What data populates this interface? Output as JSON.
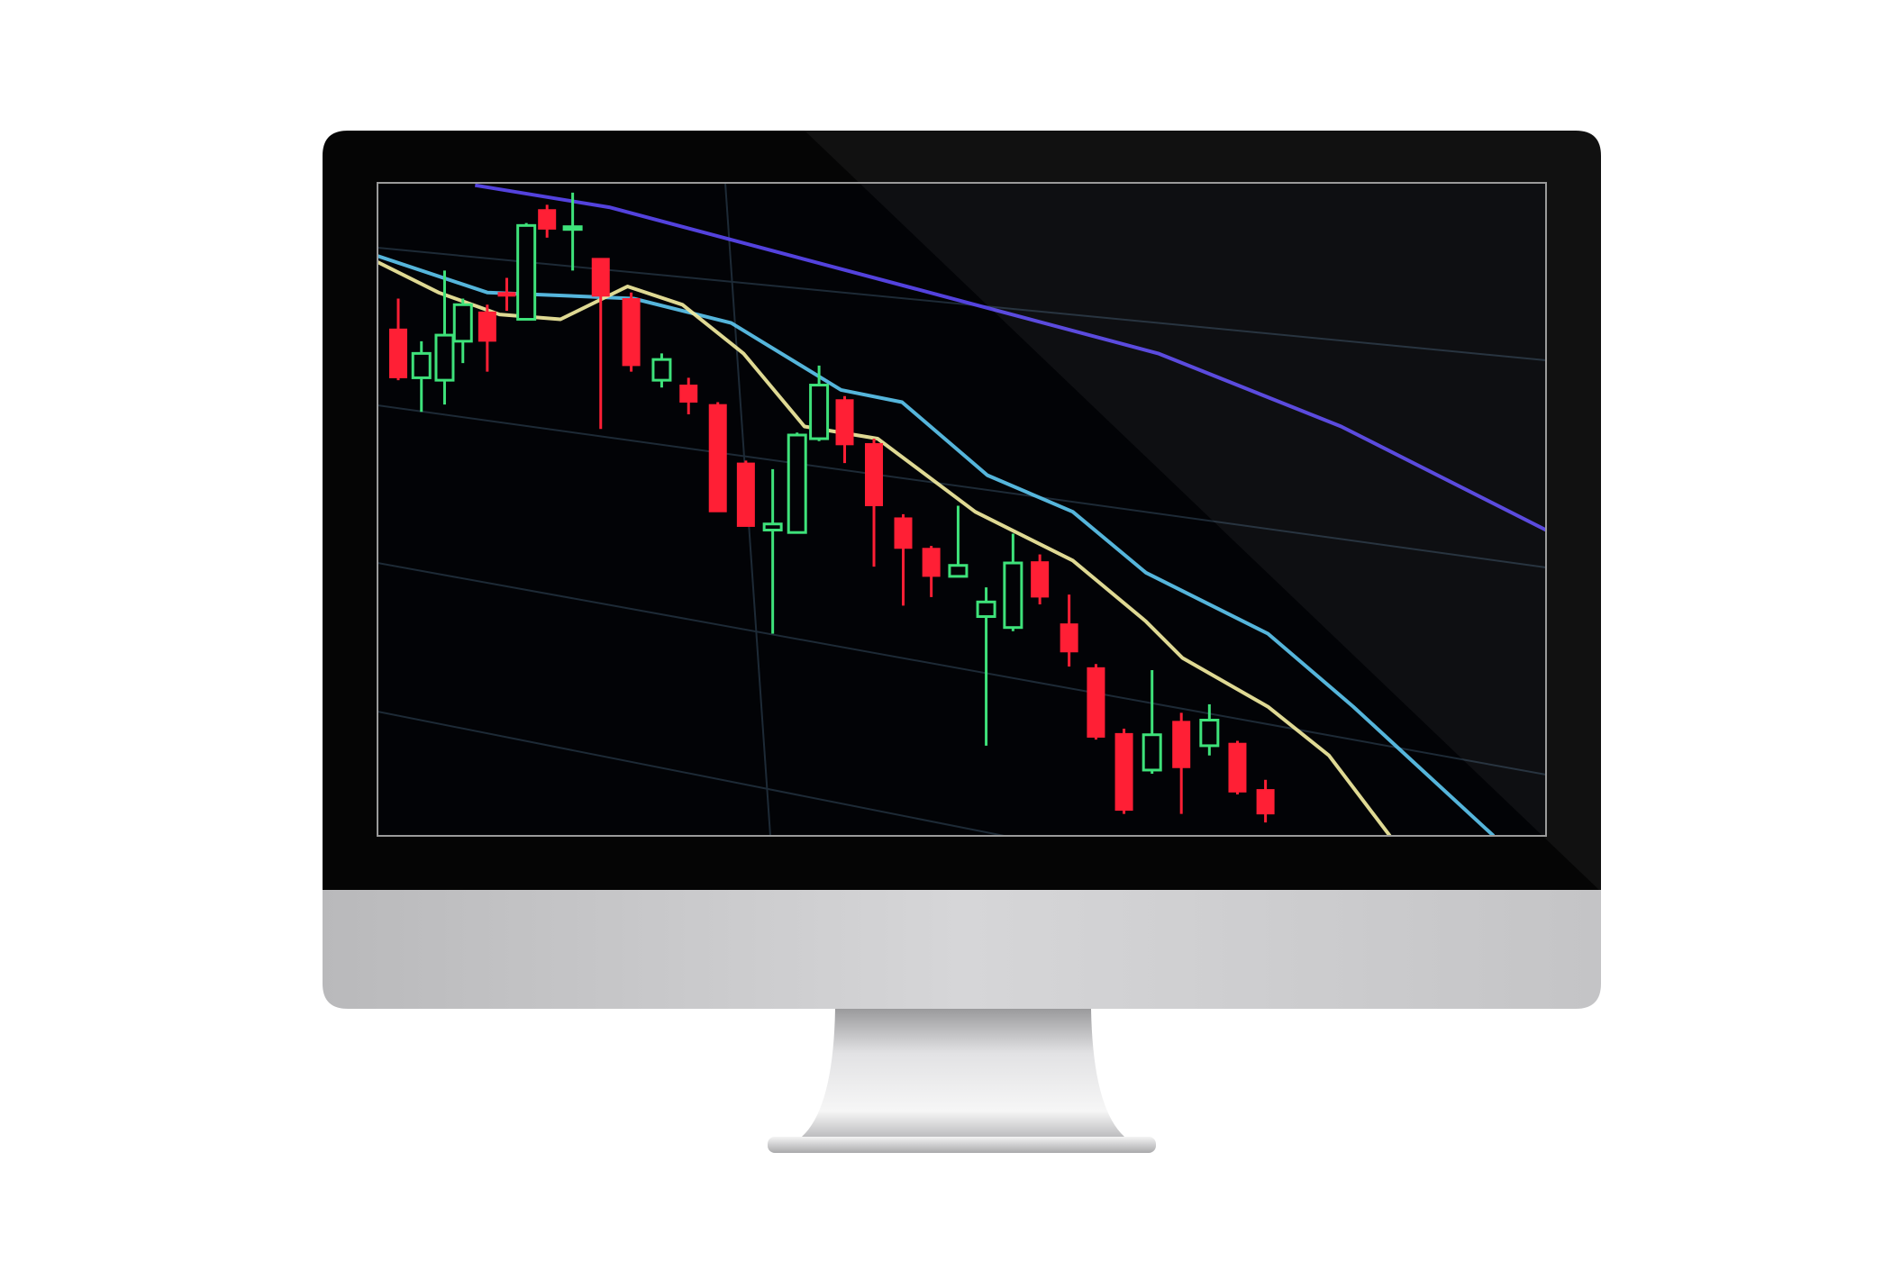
{
  "chart_data": {
    "type": "candlestick",
    "x": [
      17,
      36,
      55,
      70,
      90,
      106,
      122,
      139,
      160,
      183,
      208,
      233,
      255,
      279,
      302,
      324,
      344,
      362,
      383,
      407,
      431,
      454,
      476,
      499,
      521,
      543,
      567,
      589,
      612,
      635,
      659,
      682,
      705,
      728
    ],
    "open": [
      416,
      376,
      374,
      406,
      430,
      446,
      424,
      514,
      498,
      474,
      441,
      374,
      370,
      354,
      306,
      251,
      249,
      326,
      358,
      322,
      261,
      236,
      213,
      180,
      171,
      225,
      174,
      138,
      84,
      54,
      94,
      74,
      76,
      38
    ],
    "high": [
      441,
      406,
      464,
      441,
      436,
      458,
      503,
      518,
      528,
      474,
      446,
      396,
      376,
      356,
      308,
      301,
      331,
      386,
      361,
      326,
      264,
      238,
      271,
      204,
      248,
      231,
      198,
      141,
      88,
      136,
      101,
      108,
      78,
      46
    ],
    "low": [
      374,
      348,
      354,
      388,
      381,
      431,
      424,
      491,
      464,
      334,
      381,
      368,
      346,
      266,
      254,
      166,
      249,
      324,
      306,
      221,
      189,
      196,
      213,
      74,
      168,
      190,
      139,
      79,
      18,
      51,
      18,
      66,
      34,
      11
    ],
    "close": [
      376,
      396,
      411,
      436,
      406,
      443,
      501,
      498,
      500,
      443,
      386,
      391,
      356,
      266,
      254,
      256,
      329,
      370,
      321,
      271,
      236,
      213,
      222,
      192,
      224,
      196,
      151,
      81,
      21,
      83,
      56,
      95,
      36,
      18
    ],
    "up_color": "#3ee27a",
    "down_color": "#ff1f35",
    "series": [
      {
        "color": "#5a48f0",
        "x": [
          80,
          190,
          340,
          490,
          640,
          790,
          958
        ],
        "values": [
          534,
          516,
          476,
          436,
          396,
          336,
          251
        ]
      },
      {
        "color": "#5cc4ee",
        "x": [
          0,
          90,
          210,
          290,
          380,
          430,
          500,
          570,
          630,
          730,
          800,
          915
        ],
        "values": [
          476,
          446,
          441,
          421,
          366,
          356,
          296,
          266,
          216,
          166,
          106,
          0
        ]
      },
      {
        "color": "#f2eca0",
        "x": [
          0,
          50,
          100,
          150,
          205,
          250,
          300,
          350,
          410,
          490,
          570,
          630,
          660,
          730,
          780,
          830
        ],
        "values": [
          471,
          446,
          428,
          424,
          451,
          436,
          396,
          336,
          326,
          266,
          226,
          176,
          146,
          106,
          66,
          0
        ]
      }
    ],
    "xlim": [
      0,
      958
    ],
    "ylim": [
      0,
      536
    ]
  }
}
